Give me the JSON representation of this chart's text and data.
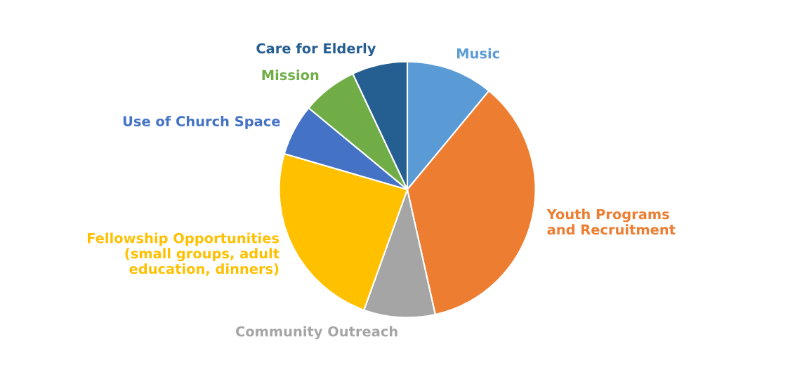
{
  "chart_data": {
    "type": "pie",
    "categories": [
      "Music",
      "Youth Programs\nand Recruitment",
      "Community Outreach",
      "Fellowship Opportunities\n(small groups, adult\neducation, dinners)",
      "Use of Church Space",
      "Mission",
      "Care for Elderly"
    ],
    "values": [
      11,
      35.5,
      9,
      24,
      6.5,
      7,
      7
    ],
    "colors": [
      "#5b9bd5",
      "#ed7d31",
      "#a5a5a5",
      "#ffc000",
      "#4472c4",
      "#70ad47",
      "#255e91"
    ],
    "legend": false
  }
}
